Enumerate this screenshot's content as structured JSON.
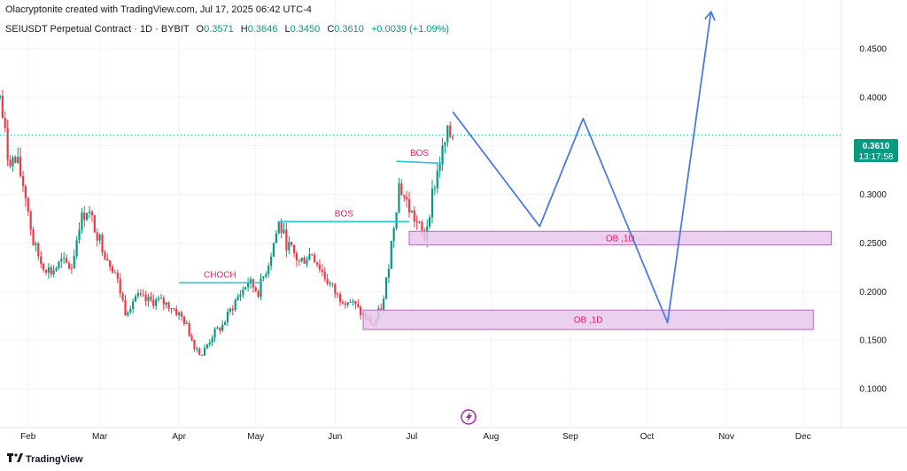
{
  "header": {
    "credit": "Olacryptonite created with TradingView.com, Jul 17, 2025 06:42 UTC-4",
    "symbol": "SEIUSDT Perpetual Contract · 1D · BYBIT",
    "o_label": "O",
    "o_value": "0.3571",
    "h_label": "H",
    "h_value": "0.3646",
    "l_label": "L",
    "l_value": "0.3450",
    "c_label": "C",
    "c_value": "0.3610",
    "change": "+0.0039 (+1.09%)"
  },
  "price_tag": {
    "price": "0.3610",
    "countdown": "13:17:58"
  },
  "footer": {
    "logo_text": "TradingView"
  },
  "colors": {
    "up": "#089981",
    "down": "#f23645",
    "projection": "#4a7be0",
    "structure": "#26c6da",
    "zone_fill": "#e8c8ec",
    "zone_stroke": "#b36bc4",
    "label": "#e91e63",
    "current": "#089981"
  },
  "chart_data": {
    "type": "candlestick",
    "y_ticks": [
      "0.1000",
      "0.1500",
      "0.2000",
      "0.2500",
      "0.3000",
      "0.3500",
      "0.4000",
      "0.4500"
    ],
    "ylim": [
      0.06,
      0.5
    ],
    "x_ticks": [
      "Feb",
      "Mar",
      "Apr",
      "May",
      "Jun",
      "Jul",
      "Aug",
      "Sep",
      "Oct",
      "Nov",
      "Dec"
    ],
    "x_range": [
      "2025-01-21",
      "2025-12-16"
    ],
    "current_price": 0.361,
    "price_path": [
      [
        "2025-01-21",
        0.4
      ],
      [
        "2025-01-24",
        0.34
      ],
      [
        "2025-01-28",
        0.33
      ],
      [
        "2025-01-31",
        0.3
      ],
      [
        "2025-02-03",
        0.25
      ],
      [
        "2025-02-06",
        0.23
      ],
      [
        "2025-02-10",
        0.22
      ],
      [
        "2025-02-14",
        0.23
      ],
      [
        "2025-02-18",
        0.225
      ],
      [
        "2025-02-21",
        0.27
      ],
      [
        "2025-02-24",
        0.285
      ],
      [
        "2025-02-28",
        0.26
      ],
      [
        "2025-03-03",
        0.24
      ],
      [
        "2025-03-07",
        0.22
      ],
      [
        "2025-03-11",
        0.18
      ],
      [
        "2025-03-15",
        0.195
      ],
      [
        "2025-03-19",
        0.19
      ],
      [
        "2025-03-24",
        0.19
      ],
      [
        "2025-03-29",
        0.185
      ],
      [
        "2025-04-03",
        0.17
      ],
      [
        "2025-04-07",
        0.145
      ],
      [
        "2025-04-10",
        0.135
      ],
      [
        "2025-04-14",
        0.155
      ],
      [
        "2025-04-18",
        0.165
      ],
      [
        "2025-04-23",
        0.19
      ],
      [
        "2025-04-28",
        0.21
      ],
      [
        "2025-05-02",
        0.2
      ],
      [
        "2025-05-06",
        0.23
      ],
      [
        "2025-05-10",
        0.27
      ],
      [
        "2025-05-13",
        0.25
      ],
      [
        "2025-05-18",
        0.23
      ],
      [
        "2025-05-23",
        0.24
      ],
      [
        "2025-05-28",
        0.215
      ],
      [
        "2025-06-02",
        0.195
      ],
      [
        "2025-06-07",
        0.19
      ],
      [
        "2025-06-12",
        0.175
      ],
      [
        "2025-06-16",
        0.165
      ],
      [
        "2025-06-20",
        0.19
      ],
      [
        "2025-06-23",
        0.25
      ],
      [
        "2025-06-26",
        0.31
      ],
      [
        "2025-06-30",
        0.285
      ],
      [
        "2025-07-03",
        0.27
      ],
      [
        "2025-07-06",
        0.255
      ],
      [
        "2025-07-09",
        0.3
      ],
      [
        "2025-07-12",
        0.335
      ],
      [
        "2025-07-15",
        0.36
      ],
      [
        "2025-07-17",
        0.361
      ]
    ],
    "annotations": [
      {
        "type": "line",
        "label": "CHOCH",
        "from": [
          "2025-04-01",
          0.209
        ],
        "to": [
          "2025-05-03",
          0.209
        ]
      },
      {
        "type": "line",
        "label": "BOS",
        "from": [
          "2025-05-10",
          0.272
        ],
        "to": [
          "2025-06-30",
          0.272
        ]
      },
      {
        "type": "line",
        "label": "BOS",
        "from": [
          "2025-06-25",
          0.334
        ],
        "to": [
          "2025-07-13",
          0.332
        ]
      },
      {
        "type": "zone",
        "label": "OB ,1D",
        "from": [
          "2025-06-30",
          0.262
        ],
        "to": [
          "2025-12-12",
          0.248
        ]
      },
      {
        "type": "zone",
        "label": "OB ,1D",
        "from": [
          "2025-06-12",
          0.181
        ],
        "to": [
          "2025-12-05",
          0.161
        ]
      }
    ],
    "projection": [
      [
        "2025-07-17",
        0.385
      ],
      [
        "2025-08-20",
        0.267
      ],
      [
        "2025-09-06",
        0.378
      ],
      [
        "2025-10-09",
        0.168
      ],
      [
        "2025-10-26",
        0.488
      ]
    ]
  }
}
